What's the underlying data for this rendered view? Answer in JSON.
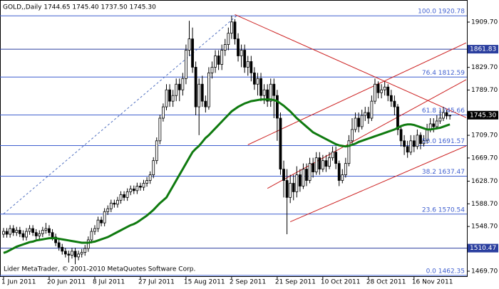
{
  "chart_data": {
    "type": "candlestick",
    "header": "GOLD,,Daily  1744.65 1745.40 1737.50 1745.30",
    "footer": "Lider MetaTrader, © 2001-2010 MetaQuotes Software Corp.",
    "ylim": [
      1460.9,
      1948.7
    ],
    "yticks": [
      {
        "value": 1909.7,
        "label": "1909.70"
      },
      {
        "value": 1829.7,
        "label": "1829.70"
      },
      {
        "value": 1789.7,
        "label": "1789.70"
      },
      {
        "value": 1709.7,
        "label": "1709.70"
      },
      {
        "value": 1669.7,
        "label": "1669.70"
      },
      {
        "value": 1628.7,
        "label": "1628.70"
      },
      {
        "value": 1588.7,
        "label": "1588.70"
      },
      {
        "value": 1548.7,
        "label": "1548.70"
      },
      {
        "value": 1469.7,
        "label": "1469.70"
      }
    ],
    "categories": [
      "1 Jun 2011",
      null,
      null,
      null,
      null,
      null,
      null,
      null,
      null,
      null,
      null,
      null,
      null,
      null,
      "20 Jun 2011",
      null,
      null,
      null,
      null,
      null,
      null,
      null,
      null,
      null,
      null,
      null,
      null,
      null,
      "8 Jul 2011",
      null,
      null,
      null,
      null,
      null,
      null,
      null,
      null,
      null,
      null,
      null,
      null,
      null,
      "27 Jul 2011",
      null,
      null,
      null,
      null,
      null,
      null,
      null,
      null,
      null,
      null,
      null,
      null,
      null,
      "15 Aug 2011",
      null,
      null,
      null,
      null,
      null,
      null,
      null,
      null,
      null,
      null,
      null,
      null,
      null,
      "2 Sep 2011",
      null,
      null,
      null,
      null,
      null,
      null,
      null,
      null,
      null,
      null,
      null,
      null,
      null,
      "21 Sep 2011",
      null,
      null,
      null,
      null,
      null,
      null,
      null,
      null,
      null,
      null,
      null,
      null,
      null,
      "10 Oct 2011",
      null,
      null,
      null,
      null,
      null,
      null,
      null,
      null,
      null,
      null,
      null,
      null,
      null,
      "28 Oct 2011",
      null,
      null,
      null,
      null,
      null,
      null,
      null,
      null,
      null,
      null,
      null,
      null,
      null,
      "16 Nov 2011",
      null,
      null,
      null,
      null,
      null,
      null,
      null,
      null,
      null,
      null,
      null
    ],
    "candles": [
      [
        1535,
        1546,
        1529,
        1540
      ],
      [
        1540,
        1546,
        1529,
        1535
      ],
      [
        1535,
        1551,
        1529,
        1545
      ],
      [
        1545,
        1551,
        1532,
        1538
      ],
      [
        1538,
        1548,
        1532,
        1542
      ],
      [
        1542,
        1548,
        1530,
        1536
      ],
      [
        1536,
        1542,
        1524,
        1530
      ],
      [
        1530,
        1546,
        1524,
        1540
      ],
      [
        1540,
        1551,
        1534,
        1545
      ],
      [
        1545,
        1551,
        1532,
        1538
      ],
      [
        1538,
        1544,
        1526,
        1532
      ],
      [
        1532,
        1542,
        1526,
        1536
      ],
      [
        1536,
        1548,
        1530,
        1542
      ],
      [
        1542,
        1555,
        1536,
        1545
      ],
      [
        1545,
        1551,
        1532,
        1538
      ],
      [
        1538,
        1544,
        1524,
        1530
      ],
      [
        1530,
        1536,
        1514,
        1520
      ],
      [
        1520,
        1526,
        1506,
        1512
      ],
      [
        1512,
        1518,
        1499,
        1505
      ],
      [
        1505,
        1511,
        1494,
        1500
      ],
      [
        1500,
        1506,
        1485,
        1498
      ],
      [
        1498,
        1511,
        1492,
        1505
      ],
      [
        1505,
        1511,
        1482,
        1495
      ],
      [
        1495,
        1506,
        1489,
        1500
      ],
      [
        1500,
        1509,
        1494,
        1503
      ],
      [
        1503,
        1516,
        1497,
        1510
      ],
      [
        1510,
        1531,
        1504,
        1525
      ],
      [
        1525,
        1546,
        1519,
        1540
      ],
      [
        1540,
        1551,
        1534,
        1545
      ],
      [
        1545,
        1566,
        1539,
        1560
      ],
      [
        1560,
        1566,
        1549,
        1555
      ],
      [
        1555,
        1581,
        1549,
        1575
      ],
      [
        1575,
        1586,
        1569,
        1580
      ],
      [
        1580,
        1596,
        1574,
        1590
      ],
      [
        1590,
        1596,
        1582,
        1588
      ],
      [
        1588,
        1601,
        1582,
        1595
      ],
      [
        1595,
        1611,
        1589,
        1605
      ],
      [
        1605,
        1611,
        1594,
        1600
      ],
      [
        1600,
        1616,
        1594,
        1610
      ],
      [
        1610,
        1621,
        1604,
        1615
      ],
      [
        1615,
        1621,
        1606,
        1612
      ],
      [
        1612,
        1626,
        1606,
        1620
      ],
      [
        1620,
        1626,
        1612,
        1618
      ],
      [
        1618,
        1631,
        1612,
        1625
      ],
      [
        1625,
        1636,
        1619,
        1630
      ],
      [
        1630,
        1646,
        1624,
        1640
      ],
      [
        1640,
        1671,
        1634,
        1665
      ],
      [
        1665,
        1706,
        1659,
        1700
      ],
      [
        1700,
        1746,
        1694,
        1740
      ],
      [
        1740,
        1766,
        1734,
        1760
      ],
      [
        1760,
        1800,
        1754,
        1790
      ],
      [
        1790,
        1800,
        1760,
        1770
      ],
      [
        1770,
        1790,
        1760,
        1780
      ],
      [
        1780,
        1810,
        1770,
        1800
      ],
      [
        1800,
        1810,
        1770,
        1790
      ],
      [
        1790,
        1820,
        1780,
        1810
      ],
      [
        1810,
        1870,
        1800,
        1860
      ],
      [
        1860,
        1912,
        1850,
        1880
      ],
      [
        1880,
        1900,
        1820,
        1830
      ],
      [
        1830,
        1840,
        1745,
        1760
      ],
      [
        1760,
        1810,
        1710,
        1800
      ],
      [
        1800,
        1815,
        1760,
        1770
      ],
      [
        1770,
        1780,
        1750,
        1760
      ],
      [
        1760,
        1830,
        1755,
        1820
      ],
      [
        1820,
        1840,
        1810,
        1830
      ],
      [
        1830,
        1860,
        1820,
        1850
      ],
      [
        1850,
        1860,
        1825,
        1835
      ],
      [
        1835,
        1870,
        1825,
        1860
      ],
      [
        1860,
        1880,
        1850,
        1870
      ],
      [
        1870,
        1900,
        1860,
        1890
      ],
      [
        1890,
        1921,
        1880,
        1910
      ],
      [
        1910,
        1915,
        1870,
        1880
      ],
      [
        1880,
        1890,
        1840,
        1850
      ],
      [
        1850,
        1870,
        1830,
        1860
      ],
      [
        1860,
        1870,
        1820,
        1830
      ],
      [
        1830,
        1850,
        1815,
        1840
      ],
      [
        1840,
        1850,
        1805,
        1820
      ],
      [
        1820,
        1830,
        1790,
        1800
      ],
      [
        1800,
        1820,
        1780,
        1810
      ],
      [
        1810,
        1820,
        1770,
        1780
      ],
      [
        1780,
        1800,
        1765,
        1790
      ],
      [
        1790,
        1800,
        1760,
        1770
      ],
      [
        1770,
        1810,
        1760,
        1800
      ],
      [
        1800,
        1810,
        1740,
        1780
      ],
      [
        1780,
        1790,
        1700,
        1740
      ],
      [
        1740,
        1750,
        1640,
        1650
      ],
      [
        1650,
        1665,
        1600,
        1630
      ],
      [
        1630,
        1650,
        1535,
        1600
      ],
      [
        1600,
        1640,
        1590,
        1625
      ],
      [
        1625,
        1640,
        1595,
        1610
      ],
      [
        1610,
        1655,
        1600,
        1640
      ],
      [
        1640,
        1650,
        1610,
        1620
      ],
      [
        1620,
        1660,
        1615,
        1650
      ],
      [
        1650,
        1660,
        1620,
        1630
      ],
      [
        1630,
        1670,
        1625,
        1660
      ],
      [
        1660,
        1670,
        1635,
        1645
      ],
      [
        1645,
        1680,
        1640,
        1670
      ],
      [
        1670,
        1680,
        1640,
        1650
      ],
      [
        1650,
        1675,
        1645,
        1665
      ],
      [
        1665,
        1675,
        1645,
        1655
      ],
      [
        1655,
        1680,
        1650,
        1670
      ],
      [
        1670,
        1690,
        1665,
        1680
      ],
      [
        1680,
        1690,
        1650,
        1660
      ],
      [
        1660,
        1665,
        1620,
        1630
      ],
      [
        1630,
        1650,
        1625,
        1640
      ],
      [
        1640,
        1670,
        1635,
        1660
      ],
      [
        1660,
        1710,
        1655,
        1700
      ],
      [
        1700,
        1740,
        1695,
        1720
      ],
      [
        1720,
        1750,
        1715,
        1740
      ],
      [
        1740,
        1750,
        1715,
        1725
      ],
      [
        1725,
        1755,
        1720,
        1745
      ],
      [
        1745,
        1760,
        1735,
        1750
      ],
      [
        1750,
        1760,
        1730,
        1740
      ],
      [
        1740,
        1780,
        1735,
        1770
      ],
      [
        1770,
        1810,
        1765,
        1800
      ],
      [
        1800,
        1805,
        1775,
        1785
      ],
      [
        1785,
        1800,
        1775,
        1790
      ],
      [
        1790,
        1805,
        1780,
        1795
      ],
      [
        1795,
        1800,
        1770,
        1780
      ],
      [
        1780,
        1790,
        1760,
        1770
      ],
      [
        1770,
        1780,
        1745,
        1760
      ],
      [
        1760,
        1765,
        1710,
        1720
      ],
      [
        1720,
        1725,
        1690,
        1700
      ],
      [
        1700,
        1710,
        1675,
        1690
      ],
      [
        1690,
        1700,
        1670,
        1680
      ],
      [
        1680,
        1710,
        1675,
        1700
      ],
      [
        1700,
        1710,
        1680,
        1690
      ],
      [
        1690,
        1720,
        1685,
        1710
      ],
      [
        1710,
        1715,
        1685,
        1695
      ],
      [
        1695,
        1710,
        1690,
        1700
      ],
      [
        1700,
        1730,
        1695,
        1720
      ],
      [
        1720,
        1740,
        1715,
        1730
      ],
      [
        1730,
        1740,
        1715,
        1725
      ],
      [
        1725,
        1745,
        1720,
        1735
      ],
      [
        1735,
        1755,
        1730,
        1740
      ],
      [
        1740,
        1760,
        1735,
        1750
      ],
      [
        1750,
        1755,
        1738,
        1744
      ],
      [
        1744.65,
        1745.4,
        1737.5,
        1745.3
      ]
    ],
    "moving_average": {
      "color": "#0f7a0f",
      "values": [
        1502,
        1504,
        1507,
        1510,
        1513,
        1515,
        1517,
        1519,
        1521,
        1522,
        1524,
        1525,
        1526,
        1527,
        1528,
        1528,
        1528,
        1527,
        1526,
        1525,
        1524,
        1523,
        1522,
        1521,
        1520,
        1520,
        1520,
        1521,
        1522,
        1524,
        1526,
        1528,
        1530,
        1533,
        1536,
        1539,
        1542,
        1545,
        1548,
        1551,
        1553,
        1556,
        1560,
        1564,
        1568,
        1573,
        1578,
        1584,
        1590,
        1595,
        1600,
        1610,
        1620,
        1630,
        1640,
        1650,
        1660,
        1670,
        1680,
        1686,
        1691,
        1698,
        1705,
        1710,
        1716,
        1722,
        1728,
        1734,
        1740,
        1746,
        1752,
        1756,
        1760,
        1763,
        1766,
        1768,
        1770,
        1771,
        1772,
        1773,
        1773,
        1773,
        1773,
        1772,
        1770,
        1766,
        1762,
        1757,
        1752,
        1746,
        1740,
        1735,
        1730,
        1725,
        1720,
        1715,
        1712,
        1709,
        1706,
        1703,
        1700,
        1697,
        1694,
        1692,
        1691,
        1690,
        1691,
        1693,
        1695,
        1698,
        1700,
        1702,
        1704,
        1706,
        1708,
        1710,
        1712,
        1714,
        1716,
        1718,
        1720,
        1723,
        1726,
        1728,
        1729,
        1729,
        1728,
        1726,
        1724,
        1722,
        1720,
        1720,
        1721,
        1722,
        1723,
        1725,
        1727,
        1729
      ]
    },
    "fib_levels": [
      {
        "value": 1920.78,
        "label": "100.0 1920.78"
      },
      {
        "value": 1812.59,
        "label": "76.4 1812.59"
      },
      {
        "value": 1745.66,
        "label": "61.8 1745.66"
      },
      {
        "value": 1691.57,
        "label": "50.0 1691.57"
      },
      {
        "value": 1637.47,
        "label": "38.2 1637.47"
      },
      {
        "value": 1570.54,
        "label": "23.6 1570.54"
      },
      {
        "value": 1462.35,
        "label": "0.0 1462.35"
      }
    ],
    "fib_color": "#3f5fcf",
    "hlines": [
      {
        "value": 1861.83,
        "label": "1861.83"
      },
      {
        "value": 1510.47,
        "label": "1510.47"
      }
    ],
    "hline_color": "#2b3f9f",
    "last_price": {
      "value": 1745.3,
      "label": "1745.30"
    },
    "lines": [
      {
        "from": [
          71,
          1923
        ],
        "to": [
          142,
          1741
        ],
        "color": "#cc2020",
        "dashed": false
      },
      {
        "from": [
          75,
          1693
        ],
        "to": [
          142,
          1873
        ],
        "color": "#cc2020",
        "dashed": false
      },
      {
        "from": [
          81,
          1616
        ],
        "to": [
          142,
          1808
        ],
        "color": "#cc2020",
        "dashed": false
      },
      {
        "from": [
          88,
          1557
        ],
        "to": [
          142,
          1691
        ],
        "color": "#cc2020",
        "dashed": false
      },
      {
        "from": [
          0,
          1571
        ],
        "to": [
          72,
          1923
        ],
        "color": "#5070c0",
        "dashed": true
      }
    ]
  }
}
